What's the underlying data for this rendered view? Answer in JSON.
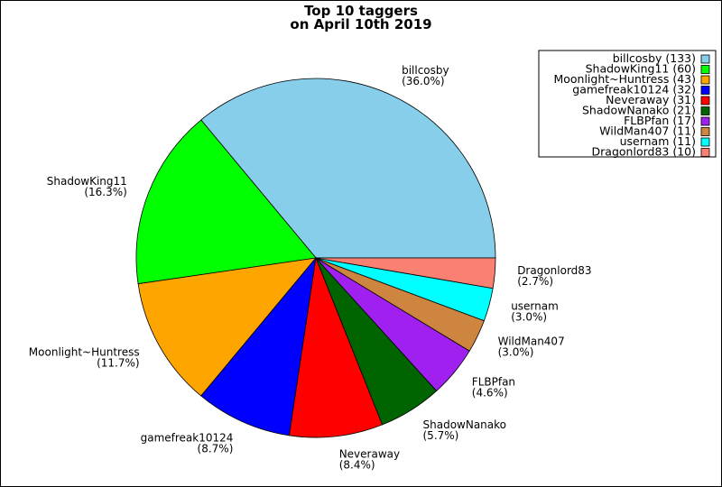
{
  "chart_data": {
    "type": "pie",
    "title": [
      "Top 10 taggers",
      "on April 10th 2019"
    ],
    "legend_position": "top-right",
    "start_angle_deg": 0,
    "direction": "counterclockwise",
    "slices": [
      {
        "name": "billcosby",
        "value": 133,
        "percent": "36.0%",
        "legend": "billcosby (133)",
        "color": "#87ceeb"
      },
      {
        "name": "ShadowKing11",
        "value": 60,
        "percent": "16.3%",
        "legend": "ShadowKing11 (60)",
        "color": "#00ff00"
      },
      {
        "name": "Moonlight~Huntress",
        "value": 43,
        "percent": "11.7%",
        "legend": "Moonlight~Huntress (43)",
        "color": "#ffa500"
      },
      {
        "name": "gamefreak10124",
        "value": 32,
        "percent": "8.7%",
        "legend": "gamefreak10124 (32)",
        "color": "#0000ff"
      },
      {
        "name": "Neveraway",
        "value": 31,
        "percent": "8.4%",
        "legend": "Neveraway (31)",
        "color": "#ff0000"
      },
      {
        "name": "ShadowNanako",
        "value": 21,
        "percent": "5.7%",
        "legend": "ShadowNanako (21)",
        "color": "#006400"
      },
      {
        "name": "FLBPfan",
        "value": 17,
        "percent": "4.6%",
        "legend": "FLBPfan (17)",
        "color": "#a020f0"
      },
      {
        "name": "WildMan407",
        "value": 11,
        "percent": "3.0%",
        "legend": "WildMan407 (11)",
        "color": "#cd853f"
      },
      {
        "name": "usernam",
        "value": 11,
        "percent": "3.0%",
        "legend": "usernam (11)",
        "color": "#00ffff"
      },
      {
        "name": "Dragonlord83",
        "value": 10,
        "percent": "2.7%",
        "legend": "Dragonlord83 (10)",
        "color": "#fa8072"
      }
    ]
  }
}
